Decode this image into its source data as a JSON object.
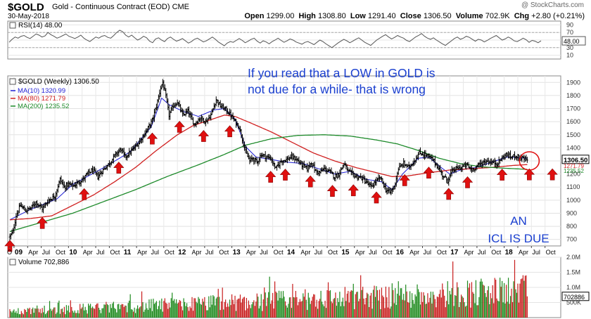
{
  "header": {
    "symbol": "$GOLD",
    "description": "Gold - Continuous Contract (EOD) CME",
    "date": "30-May-2018",
    "credit": "@ StockCharts.com",
    "open_label": "Open",
    "open": "1299.00",
    "high_label": "High",
    "high": "1308.80",
    "low_label": "Low",
    "low": "1291.40",
    "close_label": "Close",
    "close": "1306.50",
    "volume_label": "Volume",
    "volume": "702.9K",
    "chg_label": "Chg",
    "chg": "+2.80 (+0.21%)"
  },
  "colors": {
    "price": "#000000",
    "ma10": "#1f1fd6",
    "ma80": "#d02020",
    "ma200": "#1d8a2a",
    "arrows": "#e01010",
    "annotation": "#1a3fcf",
    "rsi": "#555555",
    "vol_up": "#1d8a1d",
    "vol_down": "#c81d1d"
  },
  "chart_data": [
    {
      "type": "line",
      "panel": "RSI",
      "legend": "RSI(14) 48.00",
      "ylim": [
        0,
        100
      ],
      "yticks": [
        10,
        30,
        50,
        70,
        90
      ],
      "reference_lines": [
        30,
        70
      ],
      "last_value_label": "48.00",
      "series": [
        {
          "name": "RSI(14)",
          "values": [
            44,
            52,
            58,
            55,
            60,
            62,
            57,
            54,
            60,
            66,
            63,
            58,
            61,
            70,
            64,
            60,
            55,
            58,
            62,
            66,
            60,
            57,
            54,
            58,
            63,
            55,
            50,
            46,
            52,
            58,
            55,
            60,
            62,
            57,
            55,
            62,
            70,
            76,
            72,
            63,
            58,
            63,
            56,
            50,
            54,
            60,
            56,
            47,
            43,
            53,
            56,
            50,
            46,
            54,
            58,
            52,
            47,
            50,
            54,
            48,
            42,
            46,
            52,
            55,
            50,
            45,
            48,
            53,
            58,
            52,
            45,
            40,
            35,
            42,
            46,
            44,
            49,
            54,
            49,
            43,
            47,
            52,
            55,
            47,
            42,
            48,
            45,
            40,
            46,
            50,
            55,
            49,
            44,
            48,
            53,
            50,
            45,
            42,
            39,
            44,
            46,
            42,
            38,
            44,
            50,
            46,
            40,
            35,
            30,
            36,
            42,
            47,
            52,
            48,
            43,
            47,
            52,
            56,
            50,
            44,
            40,
            36,
            43,
            50,
            55,
            60,
            64,
            58,
            53,
            57,
            62,
            58,
            55,
            49,
            46,
            52,
            58,
            62,
            67,
            60,
            55,
            52,
            56,
            50,
            45,
            40,
            36,
            42,
            48,
            54,
            58,
            52,
            55,
            60,
            57,
            52,
            47,
            52,
            50,
            45,
            49,
            54,
            58,
            62,
            56,
            50,
            53,
            58,
            54,
            48,
            46,
            50,
            55,
            51,
            44,
            49,
            47,
            43,
            48
          ]
        }
      ]
    },
    {
      "type": "line",
      "panel": "price",
      "title": "$GOLD (Weekly) 1306.50",
      "ylim": [
        650,
        1950
      ],
      "yticks": [
        700,
        800,
        900,
        1000,
        1100,
        1200,
        1300,
        1400,
        1500,
        1600,
        1700,
        1800,
        1900
      ],
      "x_labels": [
        {
          "t": 0,
          "label": "O"
        },
        {
          "t": 4,
          "label": "09"
        },
        {
          "t": 17,
          "label": "Apr"
        },
        {
          "t": 30,
          "label": "Jul"
        },
        {
          "t": 43,
          "label": "Oct"
        },
        {
          "t": 56,
          "label": "10"
        },
        {
          "t": 69,
          "label": "Apr"
        },
        {
          "t": 82,
          "label": "Jul"
        },
        {
          "t": 95,
          "label": "Oct"
        },
        {
          "t": 108,
          "label": "11"
        },
        {
          "t": 121,
          "label": "Apr"
        },
        {
          "t": 134,
          "label": "Jul"
        },
        {
          "t": 147,
          "label": "Oct"
        },
        {
          "t": 160,
          "label": "12"
        },
        {
          "t": 173,
          "label": "Apr"
        },
        {
          "t": 186,
          "label": "Jul"
        },
        {
          "t": 199,
          "label": "Oct"
        },
        {
          "t": 212,
          "label": "13"
        },
        {
          "t": 225,
          "label": "Apr"
        },
        {
          "t": 238,
          "label": "Jul"
        },
        {
          "t": 251,
          "label": "Oct"
        },
        {
          "t": 264,
          "label": "14"
        },
        {
          "t": 277,
          "label": "Apr"
        },
        {
          "t": 290,
          "label": "Jul"
        },
        {
          "t": 303,
          "label": "Oct"
        },
        {
          "t": 316,
          "label": "15"
        },
        {
          "t": 329,
          "label": "Apr"
        },
        {
          "t": 342,
          "label": "Jul"
        },
        {
          "t": 355,
          "label": "Oct"
        },
        {
          "t": 368,
          "label": "16"
        },
        {
          "t": 381,
          "label": "Apr"
        },
        {
          "t": 394,
          "label": "Jul"
        },
        {
          "t": 407,
          "label": "Oct"
        },
        {
          "t": 420,
          "label": "17"
        },
        {
          "t": 433,
          "label": "Apr"
        },
        {
          "t": 446,
          "label": "Jul"
        },
        {
          "t": 459,
          "label": "Oct"
        },
        {
          "t": 472,
          "label": "18"
        },
        {
          "t": 485,
          "label": "Apr"
        },
        {
          "t": 498,
          "label": "Jul"
        },
        {
          "t": 511,
          "label": "Oct"
        }
      ],
      "x_range": [
        -2,
        526
      ],
      "price_anchors": [
        [
          0,
          720
        ],
        [
          3,
          760
        ],
        [
          6,
          880
        ],
        [
          10,
          960
        ],
        [
          15,
          920
        ],
        [
          20,
          940
        ],
        [
          25,
          985
        ],
        [
          31,
          935
        ],
        [
          37,
          1000
        ],
        [
          43,
          1030
        ],
        [
          48,
          1160
        ],
        [
          52,
          1100
        ],
        [
          56,
          1120
        ],
        [
          61,
          1110
        ],
        [
          66,
          1140
        ],
        [
          70,
          1160
        ],
        [
          74,
          1200
        ],
        [
          79,
          1230
        ],
        [
          84,
          1180
        ],
        [
          90,
          1240
        ],
        [
          96,
          1290
        ],
        [
          101,
          1350
        ],
        [
          106,
          1390
        ],
        [
          110,
          1330
        ],
        [
          114,
          1360
        ],
        [
          119,
          1400
        ],
        [
          124,
          1450
        ],
        [
          128,
          1500
        ],
        [
          132,
          1550
        ],
        [
          136,
          1610
        ],
        [
          140,
          1720
        ],
        [
          144,
          1860
        ],
        [
          146,
          1900
        ],
        [
          149,
          1790
        ],
        [
          152,
          1650
        ],
        [
          156,
          1720
        ],
        [
          160,
          1750
        ],
        [
          165,
          1650
        ],
        [
          170,
          1680
        ],
        [
          176,
          1580
        ],
        [
          182,
          1630
        ],
        [
          187,
          1600
        ],
        [
          192,
          1650
        ],
        [
          197,
          1770
        ],
        [
          201,
          1720
        ],
        [
          205,
          1700
        ],
        [
          210,
          1660
        ],
        [
          215,
          1600
        ],
        [
          219,
          1560
        ],
        [
          222,
          1470
        ],
        [
          225,
          1370
        ],
        [
          229,
          1300
        ],
        [
          232,
          1320
        ],
        [
          236,
          1290
        ],
        [
          240,
          1350
        ],
        [
          245,
          1330
        ],
        [
          249,
          1320
        ],
        [
          254,
          1240
        ],
        [
          259,
          1300
        ],
        [
          264,
          1310
        ],
        [
          269,
          1330
        ],
        [
          274,
          1310
        ],
        [
          279,
          1270
        ],
        [
          284,
          1240
        ],
        [
          288,
          1290
        ],
        [
          292,
          1220
        ],
        [
          296,
          1210
        ],
        [
          300,
          1240
        ],
        [
          305,
          1220
        ],
        [
          310,
          1180
        ],
        [
          314,
          1200
        ],
        [
          319,
          1280
        ],
        [
          323,
          1220
        ],
        [
          327,
          1200
        ],
        [
          331,
          1180
        ],
        [
          336,
          1170
        ],
        [
          340,
          1140
        ],
        [
          345,
          1100
        ],
        [
          349,
          1140
        ],
        [
          354,
          1170
        ],
        [
          359,
          1080
        ],
        [
          363,
          1060
        ],
        [
          367,
          1100
        ],
        [
          371,
          1240
        ],
        [
          376,
          1280
        ],
        [
          381,
          1250
        ],
        [
          386,
          1300
        ],
        [
          391,
          1360
        ],
        [
          396,
          1350
        ],
        [
          400,
          1330
        ],
        [
          404,
          1310
        ],
        [
          409,
          1250
        ],
        [
          414,
          1180
        ],
        [
          418,
          1150
        ],
        [
          422,
          1220
        ],
        [
          426,
          1240
        ],
        [
          431,
          1250
        ],
        [
          436,
          1270
        ],
        [
          441,
          1230
        ],
        [
          446,
          1260
        ],
        [
          450,
          1280
        ],
        [
          455,
          1300
        ],
        [
          460,
          1290
        ],
        [
          465,
          1280
        ],
        [
          470,
          1320
        ],
        [
          474,
          1350
        ],
        [
          478,
          1330
        ],
        [
          483,
          1340
        ],
        [
          487,
          1325
        ],
        [
          491,
          1315
        ],
        [
          494,
          1306.5
        ]
      ],
      "series": [
        {
          "name": "MA(10) 1320.99",
          "anchors": [
            [
              0,
              850
            ],
            [
              20,
              930
            ],
            [
              45,
              1010
            ],
            [
              60,
              1120
            ],
            [
              90,
              1250
            ],
            [
              115,
              1370
            ],
            [
              135,
              1560
            ],
            [
              145,
              1780
            ],
            [
              152,
              1730
            ],
            [
              165,
              1680
            ],
            [
              180,
              1640
            ],
            [
              195,
              1690
            ],
            [
              205,
              1700
            ],
            [
              215,
              1620
            ],
            [
              225,
              1410
            ],
            [
              235,
              1330
            ],
            [
              250,
              1310
            ],
            [
              265,
              1290
            ],
            [
              280,
              1280
            ],
            [
              295,
              1240
            ],
            [
              310,
              1200
            ],
            [
              325,
              1220
            ],
            [
              340,
              1160
            ],
            [
              355,
              1140
            ],
            [
              365,
              1080
            ],
            [
              375,
              1200
            ],
            [
              390,
              1320
            ],
            [
              400,
              1330
            ],
            [
              410,
              1260
            ],
            [
              420,
              1200
            ],
            [
              430,
              1230
            ],
            [
              445,
              1250
            ],
            [
              460,
              1290
            ],
            [
              475,
              1330
            ],
            [
              494,
              1320.99
            ]
          ]
        },
        {
          "name": "MA(80) 1271.79",
          "anchors": [
            [
              0,
              850
            ],
            [
              20,
              860
            ],
            [
              40,
              880
            ],
            [
              60,
              960
            ],
            [
              80,
              1040
            ],
            [
              100,
              1140
            ],
            [
              120,
              1250
            ],
            [
              140,
              1380
            ],
            [
              160,
              1500
            ],
            [
              175,
              1570
            ],
            [
              190,
              1610
            ],
            [
              205,
              1650
            ],
            [
              215,
              1640
            ],
            [
              230,
              1590
            ],
            [
              250,
              1520
            ],
            [
              270,
              1440
            ],
            [
              290,
              1360
            ],
            [
              310,
              1300
            ],
            [
              330,
              1250
            ],
            [
              350,
              1210
            ],
            [
              365,
              1180
            ],
            [
              380,
              1185
            ],
            [
              400,
              1210
            ],
            [
              420,
              1230
            ],
            [
              440,
              1240
            ],
            [
              460,
              1250
            ],
            [
              480,
              1265
            ],
            [
              494,
              1271.79
            ]
          ]
        },
        {
          "name": "MA(200) 1235.52",
          "anchors": [
            [
              0,
              760
            ],
            [
              30,
              830
            ],
            [
              60,
              900
            ],
            [
              90,
              990
            ],
            [
              120,
              1080
            ],
            [
              150,
              1180
            ],
            [
              180,
              1270
            ],
            [
              205,
              1350
            ],
            [
              225,
              1420
            ],
            [
              250,
              1470
            ],
            [
              275,
              1495
            ],
            [
              300,
              1500
            ],
            [
              325,
              1490
            ],
            [
              350,
              1460
            ],
            [
              370,
              1430
            ],
            [
              390,
              1380
            ],
            [
              410,
              1320
            ],
            [
              430,
              1280
            ],
            [
              450,
              1255
            ],
            [
              470,
              1245
            ],
            [
              494,
              1235.52
            ]
          ]
        }
      ],
      "arrows_t": [
        0,
        31,
        71,
        104,
        136,
        162,
        185,
        210,
        249,
        263,
        287,
        308,
        328,
        350,
        377,
        400,
        419,
        437,
        470,
        496,
        518
      ]
    },
    {
      "type": "bar",
      "panel": "volume",
      "legend": "Volume 702,886",
      "ylim": [
        0,
        2000000
      ],
      "ytick_labels": [
        "500K",
        "1.0M",
        "1.5M",
        "2.0M"
      ],
      "last_value_label": "702886"
    }
  ],
  "annotations": {
    "line1": "If you read that a LOW in GOLD is",
    "line2": "not due for a while- that is wrong",
    "note1": "AN",
    "note2": "ICL IS DUE"
  },
  "right_labels": {
    "price": "1306.50",
    "ma_a": "1271.79",
    "ma_b": "1235.52"
  }
}
